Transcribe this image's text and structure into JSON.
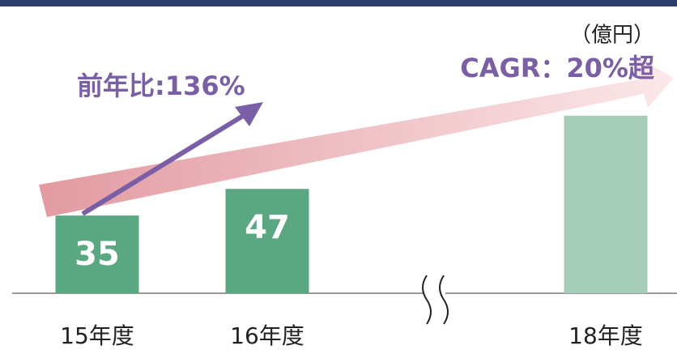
{
  "chart_data": {
    "type": "bar",
    "unit_label": "（億円）",
    "annotations": [
      "前年比:136%",
      "CAGR：20%超"
    ],
    "categories": [
      "15年度",
      "16年度",
      "18年度"
    ],
    "values": [
      35,
      47,
      80
    ],
    "value_labels": [
      "35",
      "47",
      null
    ],
    "colors": [
      "#5aa882",
      "#5aa882",
      "#a6cdb9"
    ]
  }
}
